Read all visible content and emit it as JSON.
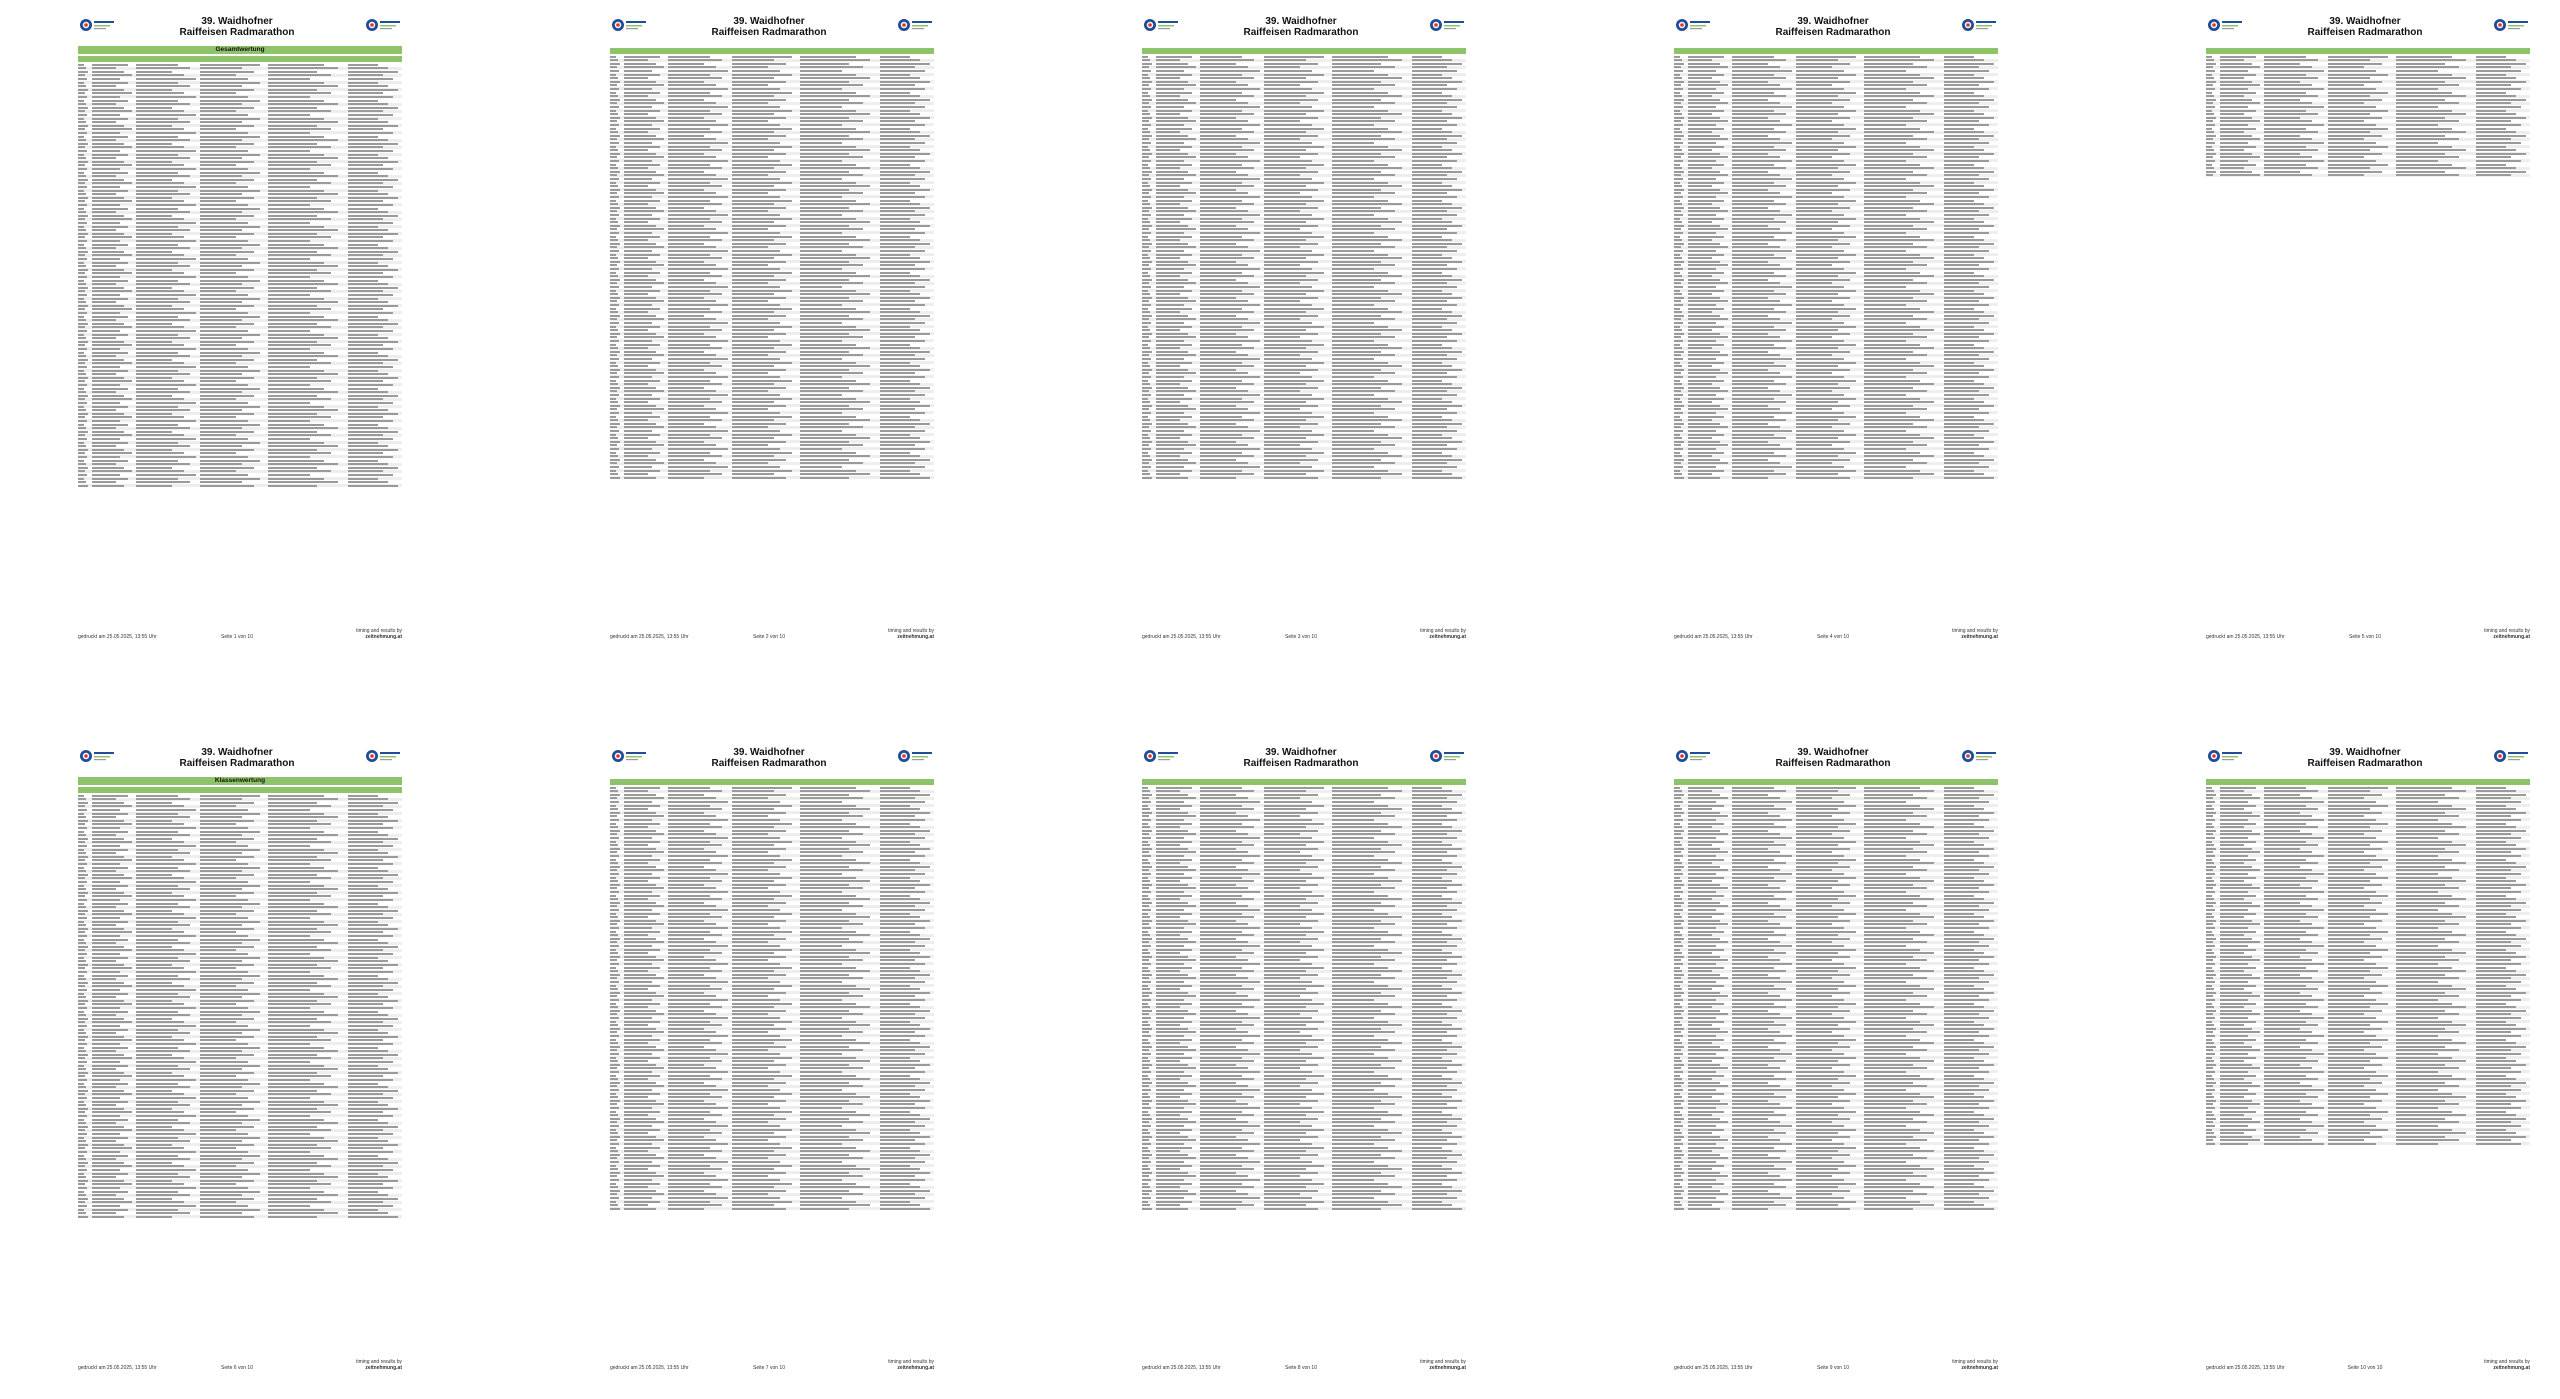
{
  "document": {
    "title_line1": "39. Waidhofner",
    "title_line2": "Raiffeisen Radmarathon",
    "bands": {
      "overall": "Gesamtwertung",
      "class": "Klassenwertung"
    },
    "footer": {
      "printed": "gedruckt am 25.05.2025, 13:55 Uhr",
      "timing_line1": "timing and results by",
      "timing_line2": "zeitnehmung.at"
    },
    "pages": [
      {
        "label": "Seite 1 von 10",
        "band": "overall"
      },
      {
        "label": "Seite 2 von 10",
        "band": ""
      },
      {
        "label": "Seite 3 von 10",
        "band": ""
      },
      {
        "label": "Seite 4 von 10",
        "band": ""
      },
      {
        "label": "Seite 5 von 10",
        "band": ""
      },
      {
        "label": "Seite 6 von 10",
        "band": "class"
      },
      {
        "label": "Seite 7 von 10",
        "band": ""
      },
      {
        "label": "Seite 8 von 10",
        "band": ""
      },
      {
        "label": "Seite 9 von 10",
        "band": ""
      },
      {
        "label": "Seite 10 von 10",
        "band": ""
      }
    ],
    "logo_icon": "event-logo-icon",
    "accent_color": "#8fc36a"
  }
}
